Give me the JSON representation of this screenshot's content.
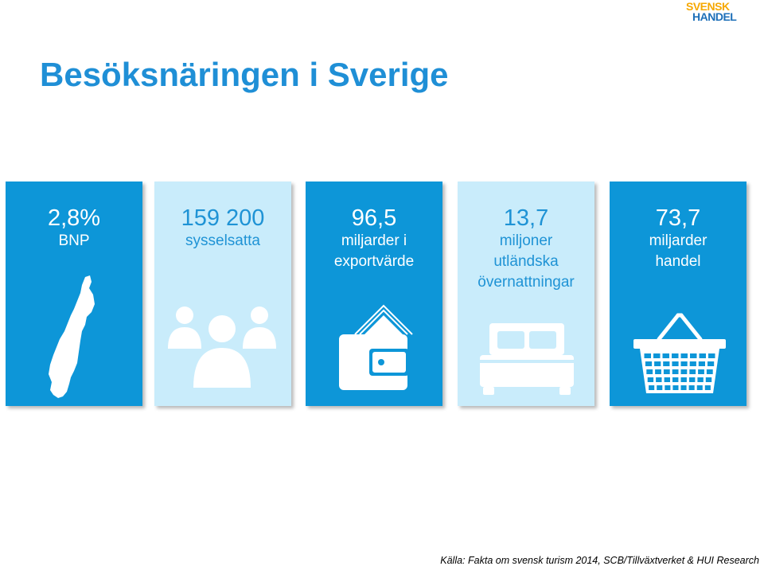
{
  "logo": {
    "line1": "SVENSK",
    "line2": "HANDEL"
  },
  "title": "Besöksnäringen i Sverige",
  "cards": [
    {
      "value": "2,8%",
      "label_lines": [
        "BNP"
      ],
      "icon": "sweden-map-icon",
      "style": "dark"
    },
    {
      "value": "159 200",
      "label_lines": [
        "sysselsatta"
      ],
      "icon": "people-icon",
      "style": "light"
    },
    {
      "value": "96,5",
      "label_lines": [
        "miljarder i",
        "exportvärde"
      ],
      "icon": "wallet-icon",
      "style": "dark"
    },
    {
      "value": "13,7",
      "label_lines": [
        "miljoner",
        "utländska",
        "övernattningar"
      ],
      "icon": "bed-icon",
      "style": "light"
    },
    {
      "value": "73,7",
      "label_lines": [
        "miljarder",
        "handel"
      ],
      "icon": "basket-icon",
      "style": "dark"
    }
  ],
  "source": "Källa:  Fakta om svensk turism 2014, SCB/Tillväxtverket & HUI Research",
  "colors": {
    "dark": "#0d96d8",
    "light": "#c9ecfb",
    "title": "#1f8fd6"
  }
}
